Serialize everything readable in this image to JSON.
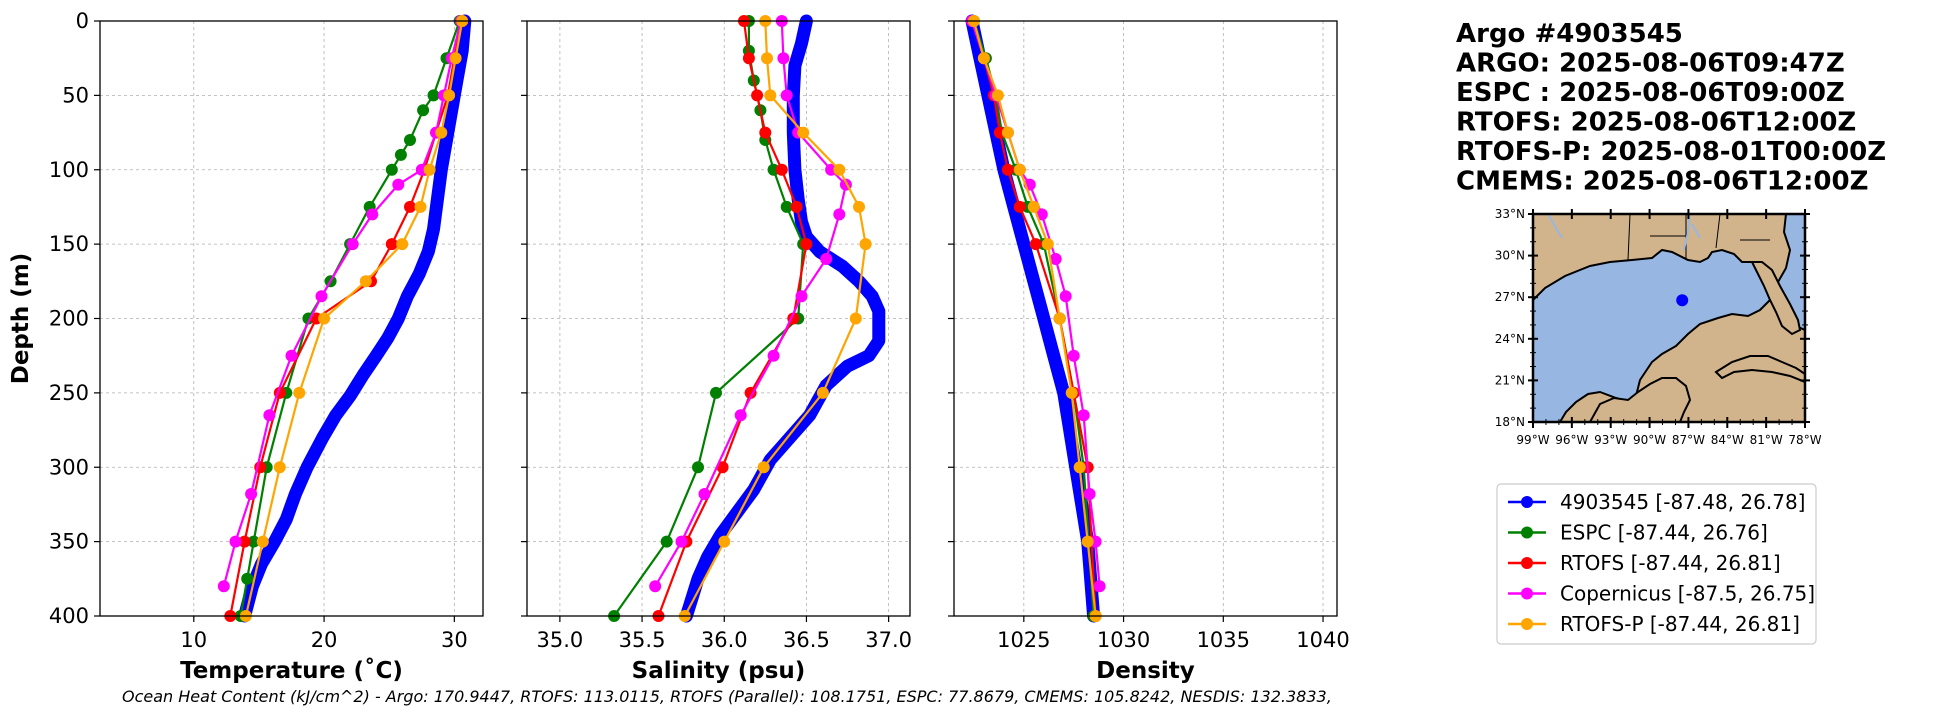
{
  "titles": [
    "Argo #4903545",
    "ARGO: 2025-08-06T09:47Z",
    "ESPC : 2025-08-06T09:00Z",
    "RTOFS: 2025-08-06T12:00Z",
    "RTOFS-P: 2025-08-01T00:00Z",
    "CMEMS: 2025-08-06T12:00Z"
  ],
  "footer": "Ocean Heat Content (kJ/cm^2) - Argo: 170.9447,  RTOFS: 113.0115,  RTOFS (Parallel): 108.1751,  ESPC: 77.8679,  CMEMS: 105.8242,  NESDIS: 132.3833,",
  "colors": {
    "argo": "#0000ff",
    "espc": "#008000",
    "rtofs": "#ff0000",
    "copernicus": "#ff00ff",
    "rtofsp": "#ffa500",
    "land": "#d2b48c",
    "ocean": "#98b6e2"
  },
  "legend": [
    {
      "label": "4903545 [-87.48, 26.78]",
      "color": "#0000ff"
    },
    {
      "label": "ESPC [-87.44, 26.76]",
      "color": "#008000"
    },
    {
      "label": "RTOFS [-87.44, 26.81]",
      "color": "#ff0000"
    },
    {
      "label": "Copernicus [-87.5, 26.75]",
      "color": "#ff00ff"
    },
    {
      "label": "RTOFS-P [-87.44, 26.81]",
      "color": "#ffa500"
    }
  ],
  "map": {
    "lat_ticks": [
      "33°N",
      "30°N",
      "27°N",
      "24°N",
      "21°N",
      "18°N"
    ],
    "lon_ticks": [
      "99°W",
      "96°W",
      "93°W",
      "90°W",
      "87°W",
      "84°W",
      "81°W",
      "78°W"
    ],
    "lon_range": [
      -99,
      -78
    ],
    "lat_range": [
      18,
      33
    ],
    "float_position": [
      -87.48,
      26.78
    ]
  },
  "chart_data": [
    {
      "type": "line",
      "xlabel": "Temperature (˚C)",
      "ylabel": "Depth (m)",
      "xlim": [
        2.8,
        32.2
      ],
      "ylim": [
        400,
        0
      ],
      "x_ticks": [
        10,
        20,
        30
      ],
      "y_ticks": [
        0,
        50,
        100,
        150,
        200,
        250,
        300,
        350,
        400
      ],
      "series": [
        {
          "name": "4903545",
          "color": "#0000ff",
          "x": [
            30.8,
            30.6,
            30.2,
            29.8,
            29.4,
            29.0,
            28.7,
            28.4,
            28.0,
            27.3,
            26.4,
            25.7,
            24.9,
            24.0,
            23.0,
            22.0,
            20.9,
            19.9,
            18.7,
            17.8,
            17.1,
            16.2,
            15.2,
            14.5,
            13.9
          ],
          "y": [
            0,
            20,
            40,
            60,
            80,
            100,
            120,
            140,
            155,
            170,
            185,
            200,
            213,
            225,
            238,
            252,
            265,
            280,
            300,
            318,
            335,
            350,
            365,
            380,
            400
          ]
        },
        {
          "name": "ESPC",
          "color": "#008000",
          "x": [
            30.4,
            29.4,
            28.4,
            27.6,
            26.6,
            25.9,
            25.2,
            23.5,
            22.0,
            20.5,
            18.8,
            17.1,
            15.6,
            14.6,
            14.1,
            13.6
          ],
          "y": [
            0,
            25,
            50,
            60,
            80,
            90,
            100,
            125,
            150,
            175,
            200,
            250,
            300,
            350,
            375,
            400
          ]
        },
        {
          "name": "RTOFS",
          "color": "#ff0000",
          "x": [
            30.6,
            30.0,
            29.5,
            28.6,
            27.7,
            26.6,
            25.2,
            23.6,
            19.4,
            16.6,
            15.1,
            13.9,
            12.8
          ],
          "y": [
            0,
            25,
            50,
            75,
            100,
            125,
            150,
            175,
            200,
            250,
            300,
            350,
            400
          ]
        },
        {
          "name": "Copernicus",
          "color": "#ff00ff",
          "x": [
            30.5,
            29.8,
            29.2,
            28.6,
            27.5,
            25.7,
            23.7,
            22.2,
            19.8,
            17.5,
            15.8,
            14.4,
            13.2,
            12.3
          ],
          "y": [
            0,
            25,
            50,
            75,
            100,
            110,
            130,
            150,
            185,
            225,
            265,
            318,
            350,
            380
          ]
        },
        {
          "name": "RTOFS-P",
          "color": "#ffa500",
          "x": [
            30.6,
            30.1,
            29.6,
            29.0,
            28.1,
            27.4,
            26.0,
            23.2,
            20.0,
            18.1,
            16.6,
            15.3,
            14.0
          ],
          "y": [
            0,
            25,
            50,
            75,
            100,
            125,
            150,
            175,
            200,
            250,
            300,
            350,
            400
          ]
        }
      ]
    },
    {
      "type": "line",
      "xlabel": "Salinity (psu)",
      "xlim": [
        34.8,
        37.13
      ],
      "ylim": [
        400,
        0
      ],
      "x_ticks": [
        "35.0",
        "35.5",
        "36.0",
        "36.5",
        "37.0"
      ],
      "x_tick_values": [
        35.0,
        35.5,
        36.0,
        36.5,
        37.0
      ],
      "y_ticks": [
        0,
        50,
        100,
        150,
        200,
        250,
        300,
        350,
        400
      ],
      "series": [
        {
          "name": "4903545",
          "color": "#0000ff",
          "x": [
            36.5,
            36.47,
            36.43,
            36.42,
            36.42,
            36.43,
            36.45,
            36.47,
            36.5,
            36.58,
            36.72,
            36.82,
            36.9,
            36.94,
            36.94,
            36.88,
            36.75,
            36.62,
            36.52,
            36.4,
            36.28,
            36.18,
            36.08,
            35.98,
            35.9,
            35.84,
            35.77
          ],
          "y": [
            0,
            15,
            30,
            50,
            75,
            100,
            120,
            135,
            145,
            155,
            165,
            175,
            185,
            195,
            215,
            225,
            232,
            245,
            265,
            280,
            295,
            315,
            330,
            345,
            360,
            375,
            400
          ]
        },
        {
          "name": "ESPC",
          "color": "#008000",
          "x": [
            36.15,
            36.15,
            36.18,
            36.22,
            36.25,
            36.3,
            36.38,
            36.48,
            36.45,
            35.95,
            35.84,
            35.65,
            35.33
          ],
          "y": [
            0,
            20,
            40,
            60,
            80,
            100,
            125,
            150,
            200,
            250,
            300,
            350,
            400
          ]
        },
        {
          "name": "RTOFS",
          "color": "#ff0000",
          "x": [
            36.12,
            36.15,
            36.2,
            36.25,
            36.35,
            36.44,
            36.5,
            36.42,
            36.16,
            35.99,
            35.77,
            35.6
          ],
          "y": [
            0,
            25,
            50,
            75,
            100,
            125,
            150,
            200,
            250,
            300,
            350,
            400
          ]
        },
        {
          "name": "Copernicus",
          "color": "#ff00ff",
          "x": [
            36.35,
            36.36,
            36.38,
            36.45,
            36.65,
            36.74,
            36.7,
            36.62,
            36.47,
            36.3,
            36.1,
            35.88,
            35.74,
            35.58
          ],
          "y": [
            0,
            25,
            50,
            75,
            100,
            110,
            130,
            160,
            185,
            225,
            265,
            318,
            350,
            380
          ]
        },
        {
          "name": "RTOFS-P",
          "color": "#ffa500",
          "x": [
            36.25,
            36.26,
            36.28,
            36.48,
            36.7,
            36.82,
            36.86,
            36.8,
            36.6,
            36.24,
            36.0,
            35.76
          ],
          "y": [
            0,
            25,
            50,
            75,
            100,
            125,
            150,
            200,
            250,
            300,
            350,
            400
          ]
        }
      ]
    },
    {
      "type": "line",
      "xlabel": "Density",
      "xlim": [
        1021.5,
        1040.7
      ],
      "ylim": [
        400,
        0
      ],
      "x_ticks": [
        1025,
        1030,
        1035,
        1040
      ],
      "y_ticks": [
        0,
        50,
        100,
        150,
        200,
        250,
        300,
        350,
        400
      ],
      "series": [
        {
          "name": "4903545",
          "color": "#0000ff",
          "x": [
            1022.4,
            1022.8,
            1023.2,
            1023.6,
            1024.0,
            1024.5,
            1025.0,
            1025.5,
            1026.0,
            1026.5,
            1027.0,
            1027.3,
            1027.6,
            1027.9,
            1028.2,
            1028.5
          ],
          "y": [
            0,
            25,
            50,
            75,
            100,
            125,
            150,
            175,
            200,
            225,
            250,
            275,
            300,
            325,
            350,
            400
          ]
        },
        {
          "name": "ESPC",
          "color": "#008000",
          "x": [
            1022.5,
            1023.1,
            1023.6,
            1023.9,
            1024.6,
            1025.2,
            1026.0,
            1026.8,
            1027.5,
            1028.0,
            1028.5
          ],
          "y": [
            0,
            25,
            50,
            75,
            100,
            125,
            150,
            200,
            250,
            300,
            400
          ]
        },
        {
          "name": "RTOFS",
          "color": "#ff0000",
          "x": [
            1022.4,
            1023.0,
            1023.5,
            1023.8,
            1024.2,
            1024.8,
            1025.6,
            1026.8,
            1027.5,
            1028.2,
            1028.4,
            1028.6
          ],
          "y": [
            0,
            25,
            50,
            75,
            100,
            125,
            150,
            200,
            250,
            300,
            350,
            400
          ]
        },
        {
          "name": "Copernicus",
          "color": "#ff00ff",
          "x": [
            1022.4,
            1023.0,
            1023.6,
            1024.2,
            1024.8,
            1025.3,
            1025.9,
            1026.6,
            1027.1,
            1027.5,
            1028.0,
            1028.3,
            1028.6,
            1028.8
          ],
          "y": [
            0,
            25,
            50,
            75,
            100,
            110,
            130,
            160,
            185,
            225,
            265,
            318,
            350,
            380
          ]
        },
        {
          "name": "RTOFS-P",
          "color": "#ffa500",
          "x": [
            1022.5,
            1023.0,
            1023.7,
            1024.2,
            1024.8,
            1025.5,
            1026.2,
            1026.8,
            1027.4,
            1027.8,
            1028.2,
            1028.6
          ],
          "y": [
            0,
            25,
            50,
            75,
            100,
            125,
            150,
            200,
            250,
            300,
            350,
            400
          ]
        }
      ]
    }
  ]
}
